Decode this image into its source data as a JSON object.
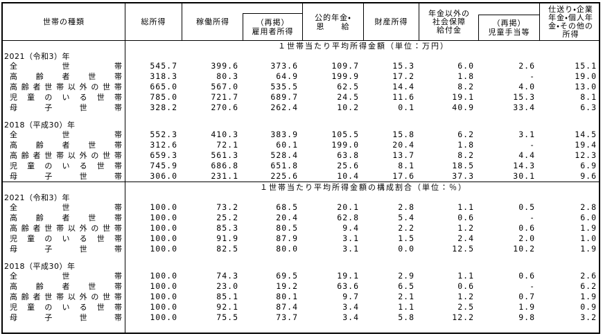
{
  "header": {
    "household_type": "世帯の種類",
    "total_income": "総所得",
    "earned_income": "稼働所得",
    "employee_income": "（再掲）\n雇用者所得",
    "public_pension": "公的年金・\n恩　　給",
    "property_income": "財産所得",
    "social_security_other": "年金以外の\n社会保障\n給付金",
    "child_allowance": "（再掲）\n児童手当等",
    "other_income": "仕送り・企業\n年金・個人年\n金・その他の\n所得"
  },
  "sections": [
    {
      "title": "１世帯当たり平均所得金額（単位：万円）",
      "groups": [
        {
          "year": "2021（令和3）年",
          "rows": [
            {
              "label": "全世帯",
              "values": [
                "545.7",
                "399.6",
                "373.6",
                "109.7",
                "15.3",
                "6.0",
                "2.6",
                "15.1"
              ]
            },
            {
              "label": "高齢者世帯",
              "values": [
                "318.3",
                "80.3",
                "64.9",
                "199.9",
                "17.2",
                "1.8",
                "-",
                "19.0"
              ]
            },
            {
              "label": "高齢者世帯以外の世帯",
              "values": [
                "665.0",
                "567.0",
                "535.5",
                "62.5",
                "14.4",
                "8.2",
                "4.0",
                "13.0"
              ]
            },
            {
              "label": "児童のいる世帯",
              "values": [
                "785.0",
                "721.7",
                "689.7",
                "24.5",
                "11.6",
                "19.1",
                "15.3",
                "8.1"
              ]
            },
            {
              "label": "母子世帯",
              "values": [
                "328.2",
                "270.6",
                "262.4",
                "10.2",
                "0.1",
                "40.9",
                "33.4",
                "6.3"
              ]
            }
          ]
        },
        {
          "year": "2018（平成30）年",
          "rows": [
            {
              "label": "全世帯",
              "values": [
                "552.3",
                "410.3",
                "383.9",
                "105.5",
                "15.8",
                "6.2",
                "3.1",
                "14.5"
              ]
            },
            {
              "label": "高齢者世帯",
              "values": [
                "312.6",
                "72.1",
                "60.1",
                "199.0",
                "20.4",
                "1.8",
                "-",
                "19.4"
              ]
            },
            {
              "label": "高齢者世帯以外の世帯",
              "values": [
                "659.3",
                "561.3",
                "528.4",
                "63.8",
                "13.7",
                "8.2",
                "4.4",
                "12.3"
              ]
            },
            {
              "label": "児童のいる世帯",
              "values": [
                "745.9",
                "686.8",
                "651.8",
                "25.6",
                "8.1",
                "18.5",
                "14.3",
                "6.9"
              ]
            },
            {
              "label": "母子世帯",
              "values": [
                "306.0",
                "231.1",
                "225.6",
                "10.4",
                "17.6",
                "37.3",
                "30.1",
                "9.6"
              ]
            }
          ]
        }
      ]
    },
    {
      "title": "１世帯当たり平均所得金額の構成割合（単位：％）",
      "groups": [
        {
          "year": "2021（令和3）年",
          "rows": [
            {
              "label": "全世帯",
              "values": [
                "100.0",
                "73.2",
                "68.5",
                "20.1",
                "2.8",
                "1.1",
                "0.5",
                "2.8"
              ]
            },
            {
              "label": "高齢者世帯",
              "values": [
                "100.0",
                "25.2",
                "20.4",
                "62.8",
                "5.4",
                "0.6",
                "-",
                "6.0"
              ]
            },
            {
              "label": "高齢者世帯以外の世帯",
              "values": [
                "100.0",
                "85.3",
                "80.5",
                "9.4",
                "2.2",
                "1.2",
                "0.6",
                "1.9"
              ]
            },
            {
              "label": "児童のいる世帯",
              "values": [
                "100.0",
                "91.9",
                "87.9",
                "3.1",
                "1.5",
                "2.4",
                "2.0",
                "1.0"
              ]
            },
            {
              "label": "母子世帯",
              "values": [
                "100.0",
                "82.5",
                "80.0",
                "3.1",
                "0.0",
                "12.5",
                "10.2",
                "1.9"
              ]
            }
          ]
        },
        {
          "year": "2018（平成30）年",
          "rows": [
            {
              "label": "全世帯",
              "values": [
                "100.0",
                "74.3",
                "69.5",
                "19.1",
                "2.9",
                "1.1",
                "0.6",
                "2.6"
              ]
            },
            {
              "label": "高齢者世帯",
              "values": [
                "100.0",
                "23.0",
                "19.2",
                "63.6",
                "6.5",
                "0.6",
                "-",
                "6.2"
              ]
            },
            {
              "label": "高齢者世帯以外の世帯",
              "values": [
                "100.0",
                "85.1",
                "80.1",
                "9.7",
                "2.1",
                "1.2",
                "0.7",
                "1.9"
              ]
            },
            {
              "label": "児童のいる世帯",
              "values": [
                "100.0",
                "92.1",
                "87.4",
                "3.4",
                "1.1",
                "2.5",
                "1.9",
                "0.9"
              ]
            },
            {
              "label": "母子世帯",
              "values": [
                "100.0",
                "75.5",
                "73.7",
                "3.4",
                "5.8",
                "12.2",
                "9.8",
                "3.2"
              ]
            }
          ]
        }
      ]
    }
  ],
  "colors": {
    "border": "#000000",
    "text": "#000000",
    "background": "#ffffff"
  }
}
